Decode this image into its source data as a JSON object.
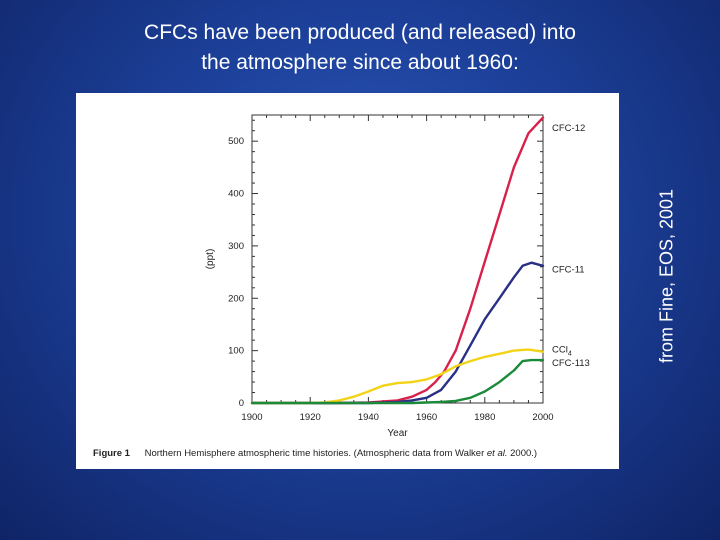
{
  "slide": {
    "title_line1": "CFCs have been produced (and released) into",
    "title_line2": "the atmosphere since about 1960:",
    "credit": "from Fine, EOS, 2001",
    "background_color": "#1c3f98"
  },
  "figure": {
    "caption_label": "Figure 1",
    "caption_text": "Northern Hemisphere atmospheric time histories. (Atmospheric data from Walker ",
    "caption_italic": "et al.",
    "caption_end": " 2000.)"
  },
  "chart_data": {
    "type": "line",
    "title": "",
    "xlabel": "Year",
    "ylabel": "(ppt)",
    "xlim": [
      1900,
      2000
    ],
    "ylim": [
      0,
      550
    ],
    "x_ticks": [
      1900,
      1920,
      1940,
      1960,
      1980,
      2000
    ],
    "y_ticks": [
      0,
      100,
      200,
      300,
      400,
      500
    ],
    "grid": false,
    "series": [
      {
        "name": "CFC-12",
        "color": "#d8204a",
        "points": [
          [
            1900,
            0
          ],
          [
            1930,
            0
          ],
          [
            1940,
            1
          ],
          [
            1950,
            5
          ],
          [
            1955,
            12
          ],
          [
            1960,
            25
          ],
          [
            1963,
            40
          ],
          [
            1966,
            60
          ],
          [
            1970,
            100
          ],
          [
            1975,
            180
          ],
          [
            1980,
            270
          ],
          [
            1985,
            360
          ],
          [
            1990,
            450
          ],
          [
            1995,
            515
          ],
          [
            2000,
            545
          ]
        ]
      },
      {
        "name": "CFC-11",
        "color": "#2a2f86",
        "points": [
          [
            1900,
            0
          ],
          [
            1940,
            0
          ],
          [
            1950,
            2
          ],
          [
            1955,
            5
          ],
          [
            1960,
            10
          ],
          [
            1965,
            25
          ],
          [
            1970,
            60
          ],
          [
            1975,
            110
          ],
          [
            1980,
            160
          ],
          [
            1985,
            200
          ],
          [
            1990,
            240
          ],
          [
            1993,
            262
          ],
          [
            1996,
            268
          ],
          [
            2000,
            262
          ]
        ]
      },
      {
        "name": "CCl4",
        "label_main": "CCl",
        "label_sub": "4",
        "color": "#f2d316",
        "points": [
          [
            1900,
            0
          ],
          [
            1920,
            0
          ],
          [
            1925,
            1
          ],
          [
            1930,
            5
          ],
          [
            1935,
            12
          ],
          [
            1940,
            22
          ],
          [
            1945,
            33
          ],
          [
            1950,
            38
          ],
          [
            1955,
            40
          ],
          [
            1960,
            45
          ],
          [
            1965,
            55
          ],
          [
            1970,
            70
          ],
          [
            1975,
            80
          ],
          [
            1980,
            88
          ],
          [
            1985,
            94
          ],
          [
            1990,
            100
          ],
          [
            1995,
            102
          ],
          [
            2000,
            98
          ]
        ]
      },
      {
        "name": "CFC-113",
        "color": "#1b8a3a",
        "points": [
          [
            1900,
            0
          ],
          [
            1955,
            0
          ],
          [
            1960,
            1
          ],
          [
            1965,
            2
          ],
          [
            1970,
            4
          ],
          [
            1975,
            10
          ],
          [
            1980,
            22
          ],
          [
            1985,
            40
          ],
          [
            1990,
            62
          ],
          [
            1993,
            80
          ],
          [
            1996,
            82
          ],
          [
            2000,
            82
          ]
        ]
      }
    ]
  }
}
